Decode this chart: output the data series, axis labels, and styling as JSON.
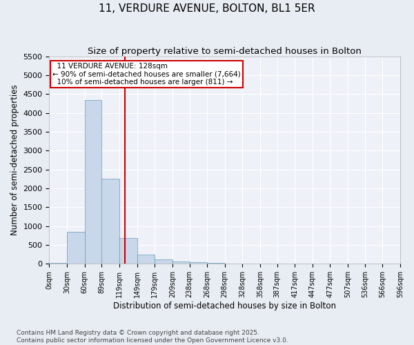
{
  "title": "11, VERDURE AVENUE, BOLTON, BL1 5ER",
  "subtitle": "Size of property relative to semi-detached houses in Bolton",
  "xlabel": "Distribution of semi-detached houses by size in Bolton",
  "ylabel": "Number of semi-detached properties",
  "bin_edges": [
    0,
    30,
    60,
    89,
    119,
    149,
    179,
    209,
    238,
    268,
    298,
    328,
    358,
    387,
    417,
    447,
    477,
    507,
    536,
    566,
    596
  ],
  "bar_heights": [
    30,
    850,
    4350,
    2250,
    680,
    250,
    120,
    65,
    40,
    20,
    5,
    3,
    2,
    1,
    0,
    0,
    0,
    0,
    0,
    0
  ],
  "bar_color": "#c8d8ea",
  "bar_edge_color": "#6699bb",
  "red_line_x": 128,
  "ylim": [
    0,
    5500
  ],
  "yticks": [
    0,
    500,
    1000,
    1500,
    2000,
    2500,
    3000,
    3500,
    4000,
    4500,
    5000,
    5500
  ],
  "annotation_title": "11 VERDURE AVENUE: 128sqm",
  "annotation_line1": "← 90% of semi-detached houses are smaller (7,664)",
  "annotation_line2": "10% of semi-detached houses are larger (811) →",
  "annotation_box_color": "#ffffff",
  "annotation_box_edge": "#cc0000",
  "footer_line1": "Contains HM Land Registry data © Crown copyright and database right 2025.",
  "footer_line2": "Contains public sector information licensed under the Open Government Licence v3.0.",
  "background_color": "#e8edf3",
  "plot_bg_color": "#eef2f8",
  "grid_color": "#ffffff",
  "title_fontsize": 11,
  "subtitle_fontsize": 9.5,
  "tick_label_fontsize": 7,
  "axis_label_fontsize": 8.5,
  "footer_fontsize": 6.5,
  "annotation_fontsize": 7.5
}
